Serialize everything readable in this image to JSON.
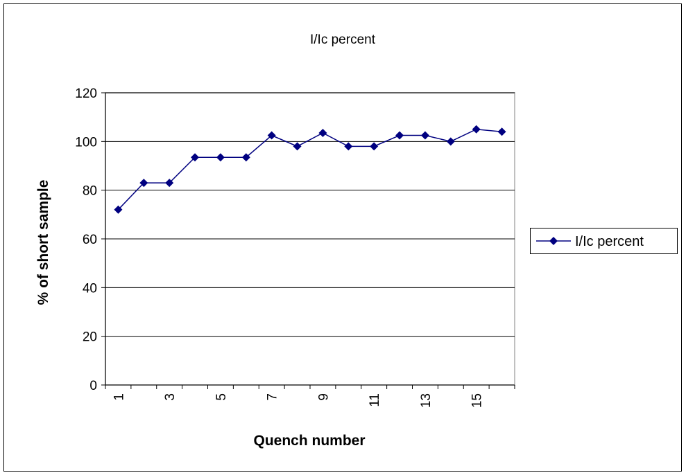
{
  "chart_data": {
    "type": "line",
    "title": "I/Ic percent",
    "xlabel": "Quench number",
    "ylabel": "% of short sample",
    "x": [
      1,
      2,
      3,
      4,
      5,
      6,
      7,
      8,
      9,
      10,
      11,
      12,
      13,
      14,
      15,
      16
    ],
    "x_tick_labels": [
      "1",
      "3",
      "5",
      "7",
      "9",
      "11",
      "13",
      "15"
    ],
    "y_ticks": [
      0,
      20,
      40,
      60,
      80,
      100,
      120
    ],
    "ylim": [
      0,
      120
    ],
    "grid": "horizontal",
    "legend_position": "right",
    "series": [
      {
        "name": "I/Ic percent",
        "color": "#000080",
        "marker": "diamond",
        "values": [
          72,
          83,
          83,
          93.5,
          93.5,
          93.5,
          102.5,
          98,
          103.5,
          98,
          98,
          102.5,
          102.5,
          100,
          105,
          104
        ]
      }
    ]
  }
}
